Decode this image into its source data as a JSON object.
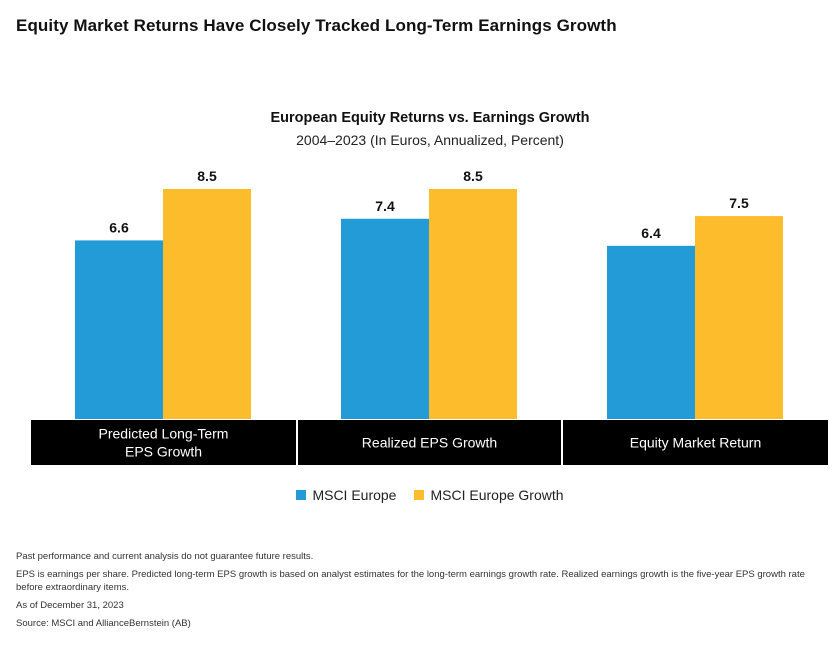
{
  "headline": "Equity Market Returns Have Closely Tracked Long-Term Earnings Growth",
  "chart_data": {
    "type": "bar",
    "title": "European Equity Returns vs. Earnings Growth",
    "subtitle": "2004–2023 (In Euros, Annualized, Percent)",
    "categories": [
      "Predicted Long-Term\nEPS Growth",
      "Realized EPS Growth",
      "Equity Market Return"
    ],
    "series": [
      {
        "name": "MSCI Europe",
        "values": [
          6.6,
          7.4,
          6.4
        ],
        "color": "#239BD7"
      },
      {
        "name": "MSCI Europe Growth",
        "values": [
          8.5,
          8.5,
          7.5
        ],
        "color": "#FDBC2C"
      }
    ],
    "ylim": [
      0,
      8.5
    ],
    "xlabel": "",
    "ylabel": "",
    "grid": false,
    "legend_position": "bottom-center",
    "category_band_color": "#000000"
  },
  "notes": [
    "Past performance and current analysis do not guarantee future results.",
    "EPS is earnings per share. Predicted long-term EPS growth is based on analyst estimates for the long-term earnings growth rate. Realized earnings growth is the five-year EPS growth rate before extraordinary items.",
    "As of December 31, 2023",
    "Source: MSCI and AllianceBernstein (AB)"
  ]
}
